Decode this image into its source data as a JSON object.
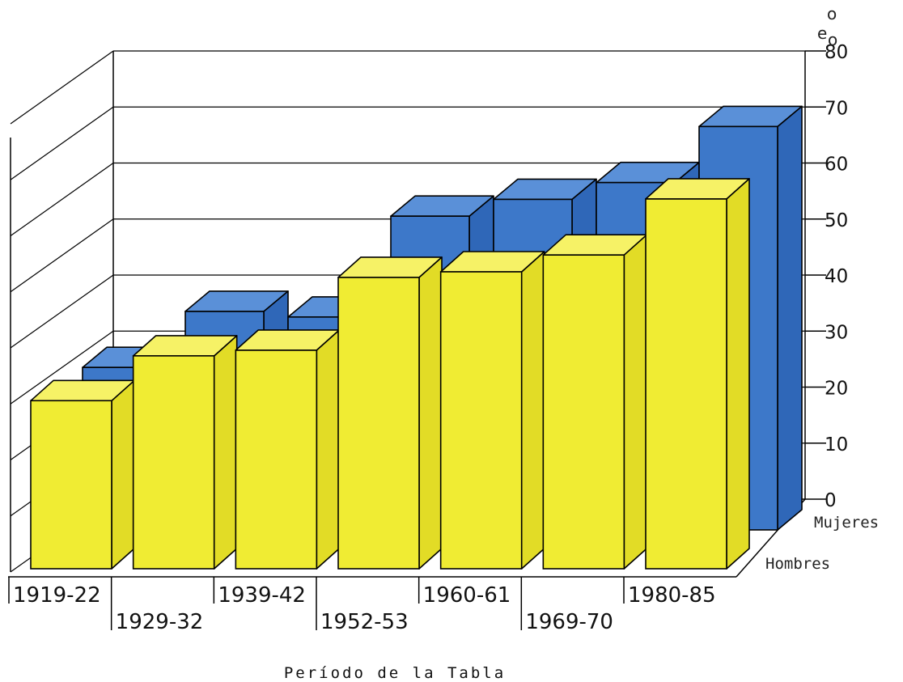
{
  "chart_data": {
    "type": "bar",
    "style": "3d-grouped",
    "title": "",
    "xlabel": "Período de la Tabla",
    "ylabel": "e",
    "ylabel_sub": "o",
    "ylabel_sup": "o",
    "ylim": [
      0,
      80
    ],
    "yticks": [
      0,
      10,
      20,
      30,
      40,
      50,
      60,
      70,
      80
    ],
    "grid": true,
    "categories": [
      "1919-22",
      "1929-32",
      "1939-42",
      "1952-53",
      "1960-61",
      "1969-70",
      "1980-85"
    ],
    "category_labels": [
      "1919-22",
      "1929-32",
      "1939-42",
      "1952-53",
      "1960-61",
      "1969-70",
      "1980-85"
    ],
    "series": [
      {
        "name": "Mujeres",
        "values": [
          29,
          39,
          38,
          56,
          59,
          62,
          72
        ]
      },
      {
        "name": "Hombres",
        "values": [
          30,
          38,
          39,
          52,
          53,
          56,
          66
        ]
      }
    ],
    "colors": {
      "Mujeres": "#3d78c9",
      "Hombres": "#f0ec33"
    }
  }
}
